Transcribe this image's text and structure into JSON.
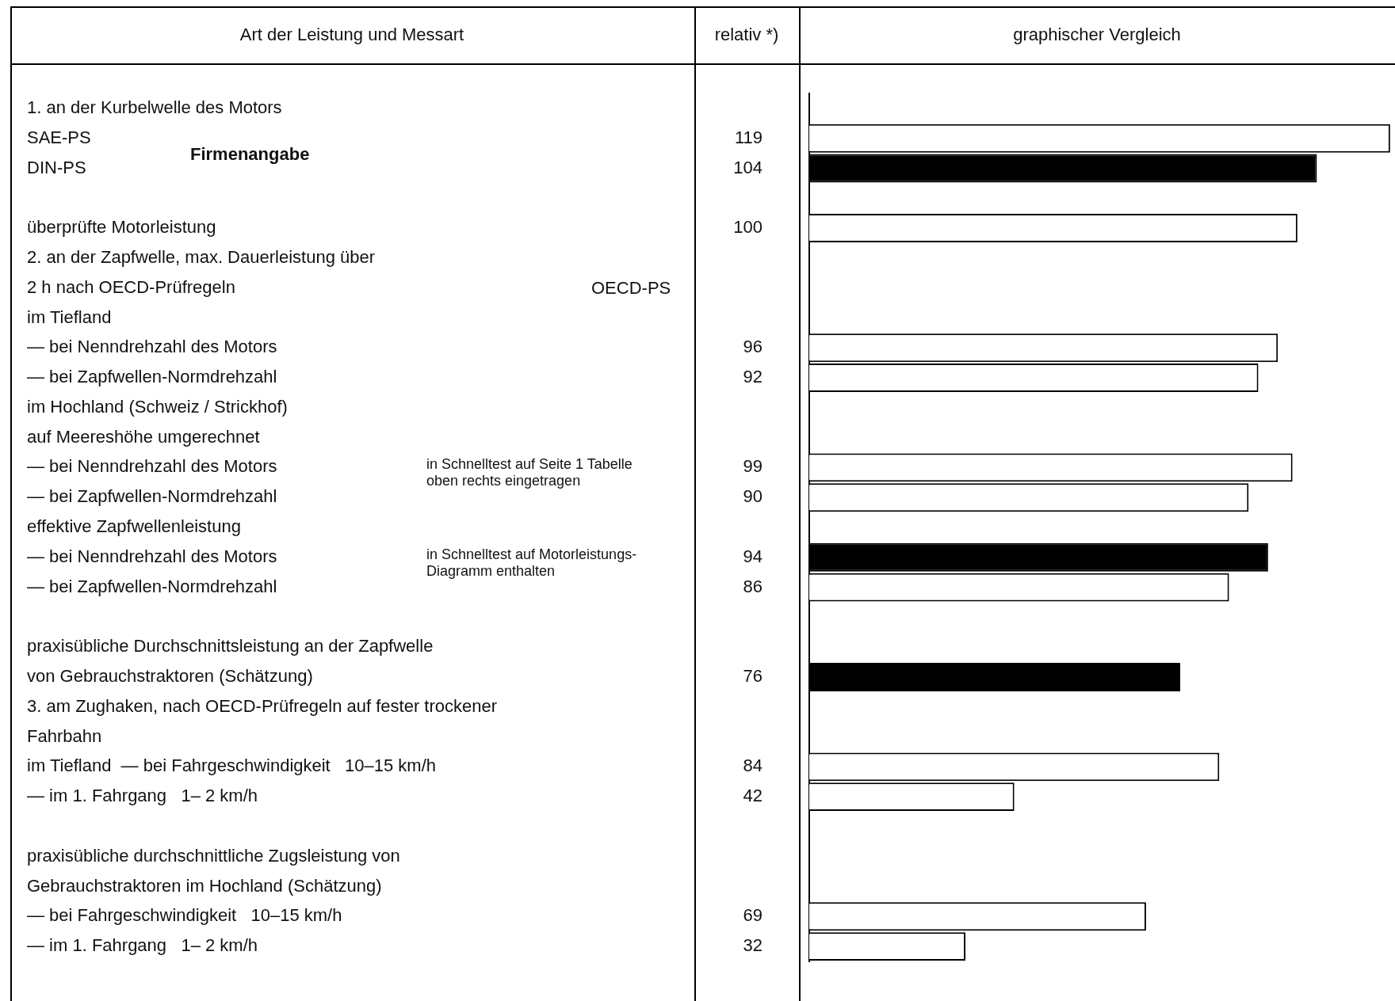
{
  "chart_data": {
    "type": "bar",
    "orientation": "horizontal",
    "data_labels": true,
    "legend": false,
    "categories": [
      "1. an der Kurbelwelle des Motors",
      "SAE-PS",
      "DIN-PS",
      null,
      "überprüfte Motorleistung",
      "2. an der Zapfwelle, max. Dauerleistung über",
      "2 h nach OECD-Prüfregeln",
      "im Tiefland",
      "— bei Nenndrehzahl des Motors",
      "— bei Zapfwellen-Normdrehzahl",
      "im Hochland (Schweiz / Strickhof)",
      "auf Meereshöhe umgerechnet",
      "— bei Nenndrehzahl des Motors",
      "— bei Zapfwellen-Normdrehzahl",
      "effektive Zapfwellenleistung",
      "— bei Nenndrehzahl des Motors",
      "— bei Zapfwellen-Normdrehzahl",
      null,
      "praxisübliche Durchschnittsleistung an der Zapfwelle",
      "von Gebrauchstraktoren (Schätzung)",
      "3. am Zughaken, nach OECD-Prüfregeln auf fester trockener",
      "Fahrbahn",
      "im Tiefland  — bei Fahrgeschwindigkeit   10–15 km/h",
      "— im 1. Fahrgang   1– 2 km/h",
      null,
      "praxisübliche durchschnittliche Zugsleistung von",
      "Gebrauchstraktoren im Hochland (Schätzung)",
      "— bei Fahrgeschwindigkeit   10–15 km/h",
      "— im 1. Fahrgang   1– 2 km/h"
    ],
    "values": [
      null,
      119,
      104,
      null,
      100,
      null,
      null,
      null,
      96,
      92,
      null,
      null,
      99,
      90,
      null,
      94,
      86,
      null,
      null,
      76,
      null,
      null,
      84,
      42,
      null,
      null,
      null,
      69,
      32
    ],
    "colors": [
      null,
      "#ffffff",
      "#000000",
      null,
      "#ffffff",
      null,
      null,
      null,
      "#ffffff",
      "#ffffff",
      null,
      null,
      "#ffffff",
      "#ffffff",
      null,
      "#000000",
      "#ffffff",
      null,
      null,
      "#000000",
      null,
      null,
      "#ffffff",
      "#ffffff",
      null,
      null,
      null,
      "#ffffff",
      "#ffffff"
    ],
    "annotations": [
      "Art der Leistung und Messart",
      "relativ *)",
      "graphischer Vergleich",
      "Firmenangabe",
      "OECD-PS",
      "in Schnelltest auf Seite 1 Tabelle oben rechts eingetragen",
      "in Schnelltest auf Motorleistungs-Diagramm enthalten"
    ]
  }
}
